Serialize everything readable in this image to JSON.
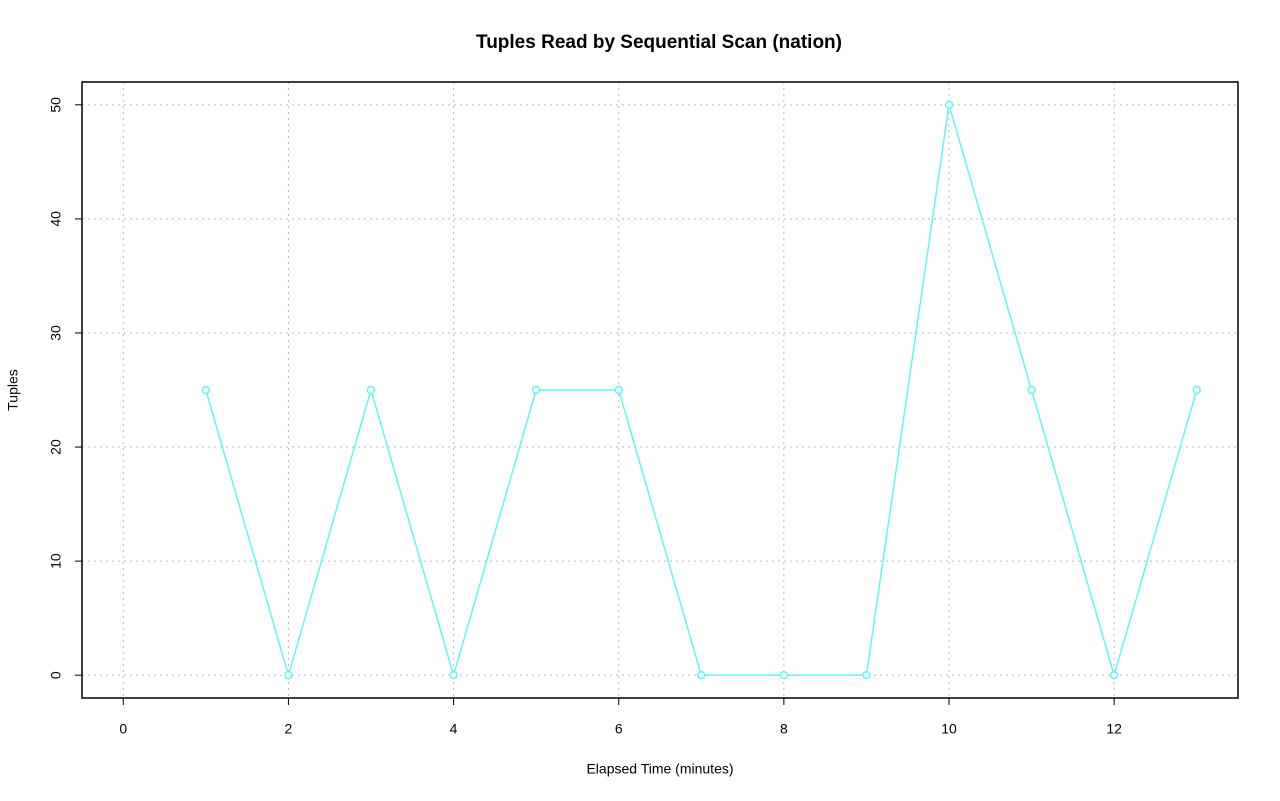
{
  "chart_data": {
    "type": "line",
    "title": "Tuples Read by Sequential Scan (nation)",
    "x_label": "Elapsed Time (minutes)",
    "y_label": "Tuples",
    "x": [
      1,
      2,
      3,
      4,
      5,
      6,
      7,
      8,
      9,
      10,
      11,
      12,
      13
    ],
    "series": [
      {
        "name": "nation",
        "color": "#66f5f5",
        "values": [
          25,
          0,
          25,
          0,
          25,
          25,
          0,
          0,
          0,
          50,
          25,
          0,
          25
        ]
      }
    ],
    "xlim": [
      -0.5,
      13.5
    ],
    "xticks": [
      0,
      2,
      4,
      6,
      8,
      10,
      12
    ],
    "ylim": [
      -2,
      52
    ],
    "yticks": [
      0,
      10,
      20,
      30,
      40,
      50
    ],
    "grid": true
  }
}
